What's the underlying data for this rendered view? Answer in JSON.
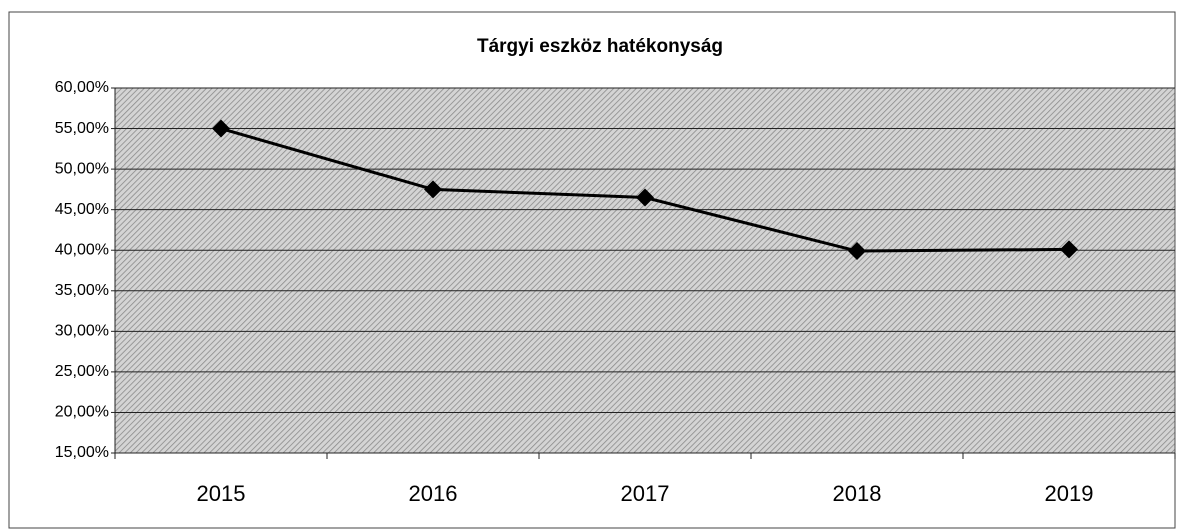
{
  "chart_data": {
    "type": "line",
    "title": "Tárgyi eszköz hatékonyság",
    "categories": [
      "2015",
      "2016",
      "2017",
      "2018",
      "2019"
    ],
    "values": [
      55.0,
      47.5,
      46.5,
      39.9,
      40.1
    ],
    "color": "#000000",
    "ylim": [
      15,
      60
    ],
    "yticks": [
      {
        "value": 15,
        "label": "15,00%"
      },
      {
        "value": 20,
        "label": "20,00%"
      },
      {
        "value": 25,
        "label": "25,00%"
      },
      {
        "value": 30,
        "label": "30,00%"
      },
      {
        "value": 35,
        "label": "35,00%"
      },
      {
        "value": 40,
        "label": "40,00%"
      },
      {
        "value": 45,
        "label": "45,00%"
      },
      {
        "value": 50,
        "label": "50,00%"
      },
      {
        "value": 55,
        "label": "55,00%"
      },
      {
        "value": 60,
        "label": "60,00%"
      }
    ],
    "grid": true
  }
}
